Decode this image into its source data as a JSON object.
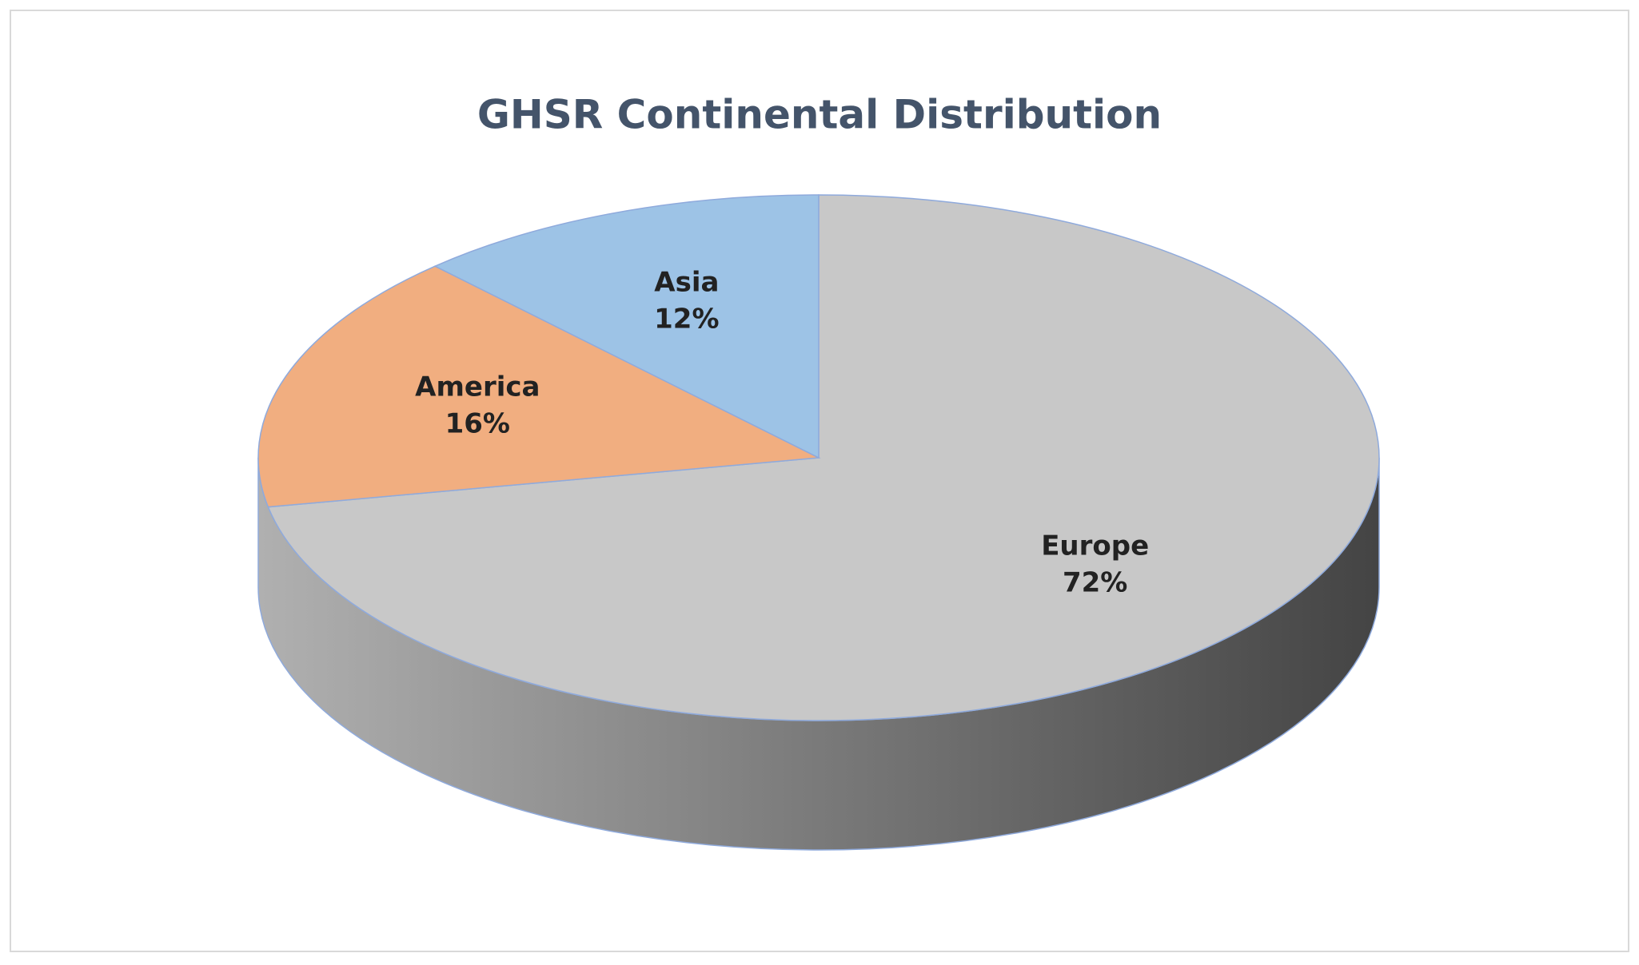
{
  "chart_data": {
    "type": "pie3d",
    "title": "GHSR Continental Distribution",
    "categories": [
      "Europe",
      "America",
      "Asia"
    ],
    "values": [
      72,
      16,
      12
    ],
    "value_labels": [
      "72%",
      "16%",
      "12%"
    ],
    "colors": [
      "#c8c8c8",
      "#f1ae80",
      "#9dc3e6"
    ]
  }
}
